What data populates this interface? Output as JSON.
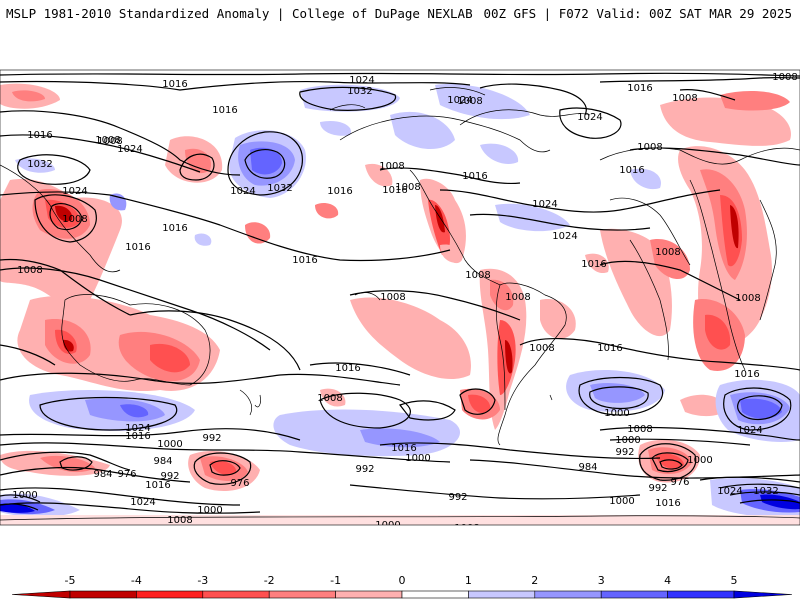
{
  "header": {
    "left_title": "MSLP 1981-2010 Standardized Anomaly | College of DuPage NEXLAB",
    "right_title": "00Z GFS | F072 Valid: 00Z SAT MAR 29 2025"
  },
  "map": {
    "projection": "global equirectangular (Pacific-centered)",
    "contour_field": "MSLP (hPa)",
    "shaded_field": "standardized anomaly",
    "contour_labels": [
      {
        "id": "c1",
        "text": "1024"
      },
      {
        "id": "c2",
        "text": "1032"
      },
      {
        "id": "c3",
        "text": "1016"
      },
      {
        "id": "c4",
        "text": "1008"
      },
      {
        "id": "c5",
        "text": "1016"
      },
      {
        "id": "c6",
        "text": "1016"
      },
      {
        "id": "c7",
        "text": "1008"
      },
      {
        "id": "c8",
        "text": "1024"
      },
      {
        "id": "c9",
        "text": "1032"
      },
      {
        "id": "c10",
        "text": "1024"
      },
      {
        "id": "c11",
        "text": "1008"
      },
      {
        "id": "c12",
        "text": "1016"
      },
      {
        "id": "c13",
        "text": "1024"
      },
      {
        "id": "c14",
        "text": "1032"
      },
      {
        "id": "c15",
        "text": "1016"
      },
      {
        "id": "c16",
        "text": "1016"
      },
      {
        "id": "c17",
        "text": "1008"
      },
      {
        "id": "c18",
        "text": "1008"
      },
      {
        "id": "c19",
        "text": "1016"
      },
      {
        "id": "c20",
        "text": "1024"
      },
      {
        "id": "c21",
        "text": "1024"
      },
      {
        "id": "c22",
        "text": "1024"
      },
      {
        "id": "c23",
        "text": "1016"
      },
      {
        "id": "c24",
        "text": "1016"
      },
      {
        "id": "c25",
        "text": "1008"
      },
      {
        "id": "c26",
        "text": "1008"
      },
      {
        "id": "c27",
        "text": "1016"
      },
      {
        "id": "c28",
        "text": "1008"
      },
      {
        "id": "c29",
        "text": "1008"
      },
      {
        "id": "c30",
        "text": "1008"
      },
      {
        "id": "c31",
        "text": "1016"
      },
      {
        "id": "c32",
        "text": "1016"
      },
      {
        "id": "c33",
        "text": "1008"
      },
      {
        "id": "c34",
        "text": "1016"
      },
      {
        "id": "c35",
        "text": "1008"
      },
      {
        "id": "c36",
        "text": "1008"
      },
      {
        "id": "c37",
        "text": "1024"
      },
      {
        "id": "c38",
        "text": "1008"
      },
      {
        "id": "c39",
        "text": "1000"
      },
      {
        "id": "c40",
        "text": "992"
      },
      {
        "id": "c41",
        "text": "984"
      },
      {
        "id": "c42",
        "text": "984"
      },
      {
        "id": "c43",
        "text": "976"
      },
      {
        "id": "c44",
        "text": "992"
      },
      {
        "id": "c45",
        "text": "1016"
      },
      {
        "id": "c46",
        "text": "1000"
      },
      {
        "id": "c47",
        "text": "1024"
      },
      {
        "id": "c48",
        "text": "976"
      },
      {
        "id": "c49",
        "text": "1000"
      },
      {
        "id": "c50",
        "text": "1008"
      },
      {
        "id": "c51",
        "text": "1016"
      },
      {
        "id": "c52",
        "text": "1000"
      },
      {
        "id": "c53",
        "text": "992"
      },
      {
        "id": "c54",
        "text": "992"
      },
      {
        "id": "c55",
        "text": "1000"
      },
      {
        "id": "c56",
        "text": "1008"
      },
      {
        "id": "c57",
        "text": "1024"
      },
      {
        "id": "c58",
        "text": "1016"
      },
      {
        "id": "c59",
        "text": "1008"
      },
      {
        "id": "c60",
        "text": "1000"
      },
      {
        "id": "c61",
        "text": "992"
      },
      {
        "id": "c62",
        "text": "984"
      },
      {
        "id": "c63",
        "text": "976"
      },
      {
        "id": "c64",
        "text": "992"
      },
      {
        "id": "c65",
        "text": "1000"
      },
      {
        "id": "c66",
        "text": "1016"
      },
      {
        "id": "c67",
        "text": "1024"
      },
      {
        "id": "c68",
        "text": "1032"
      },
      {
        "id": "c69",
        "text": "1000"
      },
      {
        "id": "c70",
        "text": "1008"
      },
      {
        "id": "c71",
        "text": "1016"
      },
      {
        "id": "c72",
        "text": "1024"
      },
      {
        "id": "c73",
        "text": "1008"
      },
      {
        "id": "c74",
        "text": "1016"
      },
      {
        "id": "c75",
        "text": "1008"
      },
      {
        "id": "c76",
        "text": "1000"
      }
    ]
  },
  "colorbar": {
    "min": -5,
    "max": 5,
    "ticks": [
      "-5",
      "-4",
      "-3",
      "-2",
      "-1",
      "0",
      "1",
      "2",
      "3",
      "4",
      "5"
    ],
    "colors": [
      "#c00000",
      "#ff2020",
      "#ff5050",
      "#ff7f7f",
      "#ffb0b0",
      "#ffffff",
      "#c8c8ff",
      "#9696ff",
      "#6464ff",
      "#3232ff",
      "#0000e0"
    ]
  }
}
